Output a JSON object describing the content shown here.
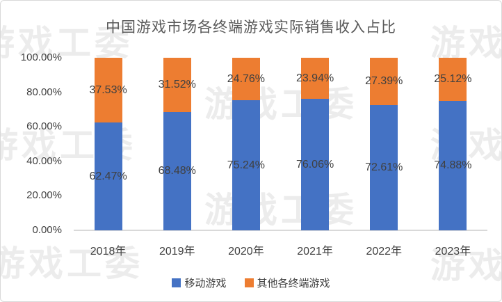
{
  "title": "中国游戏市场各终端游戏实际销售收入占比",
  "watermark": {
    "text": "游戏工委",
    "color": "#ececec"
  },
  "chart_data": {
    "type": "bar",
    "subtype": "stacked-percent",
    "title": "中国游戏市场各终端游戏实际销售收入占比",
    "categories": [
      "2018年",
      "2019年",
      "2020年",
      "2021年",
      "2022年",
      "2023年"
    ],
    "series": [
      {
        "name": "移动游戏",
        "color": "#4472C4",
        "values": [
          62.47,
          68.48,
          75.24,
          76.06,
          72.61,
          74.88
        ]
      },
      {
        "name": "其他各终端游戏",
        "color": "#ED7D31",
        "values": [
          37.53,
          31.52,
          24.76,
          23.94,
          27.39,
          25.12
        ]
      }
    ],
    "y_ticks": [
      "0.00%",
      "20.00%",
      "40.00%",
      "60.00%",
      "80.00%",
      "100.00%"
    ],
    "ylim": [
      0,
      100
    ],
    "unit": "%",
    "value_label_suffix": "%",
    "grid": false,
    "legend_position": "bottom",
    "xlabel": "",
    "ylabel": ""
  },
  "colors": {
    "title_text": "#595959",
    "axis_text": "#404040",
    "data_label_text": "#404040",
    "axis_line": "#d9d9d9",
    "background": "#ffffff",
    "border": "#d8d8d8"
  }
}
